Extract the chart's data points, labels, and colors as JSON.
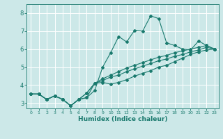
{
  "xlabel": "Humidex (Indice chaleur)",
  "ylabel": "",
  "bg_color": "#cce8e8",
  "grid_color": "#ffffff",
  "line_color": "#1a7a6e",
  "xlim": [
    -0.5,
    23.5
  ],
  "ylim": [
    2.7,
    8.5
  ],
  "xticks": [
    0,
    1,
    2,
    3,
    4,
    5,
    6,
    7,
    8,
    9,
    10,
    11,
    12,
    13,
    14,
    15,
    16,
    17,
    18,
    19,
    20,
    21,
    22,
    23
  ],
  "yticks": [
    3,
    4,
    5,
    6,
    7,
    8
  ],
  "series": [
    [
      3.5,
      3.5,
      3.2,
      3.4,
      3.2,
      2.85,
      3.2,
      3.3,
      3.7,
      5.0,
      5.8,
      6.7,
      6.4,
      7.05,
      7.0,
      7.85,
      7.7,
      6.35,
      6.2,
      6.0,
      5.95,
      6.45,
      6.2,
      6.0
    ],
    [
      3.5,
      3.5,
      3.2,
      3.4,
      3.2,
      2.85,
      3.2,
      3.3,
      4.1,
      4.15,
      4.05,
      4.15,
      4.3,
      4.5,
      4.65,
      4.8,
      5.0,
      5.1,
      5.3,
      5.5,
      5.7,
      5.85,
      5.95,
      6.0
    ],
    [
      3.5,
      3.5,
      3.2,
      3.4,
      3.2,
      2.85,
      3.2,
      3.55,
      4.1,
      4.25,
      4.45,
      4.55,
      4.75,
      4.9,
      5.05,
      5.2,
      5.35,
      5.45,
      5.6,
      5.7,
      5.85,
      5.95,
      6.1,
      6.0
    ],
    [
      3.5,
      3.5,
      3.2,
      3.4,
      3.2,
      2.85,
      3.2,
      3.55,
      4.1,
      4.35,
      4.55,
      4.75,
      4.95,
      5.1,
      5.25,
      5.4,
      5.55,
      5.65,
      5.8,
      5.9,
      6.0,
      6.1,
      6.2,
      6.0
    ]
  ]
}
